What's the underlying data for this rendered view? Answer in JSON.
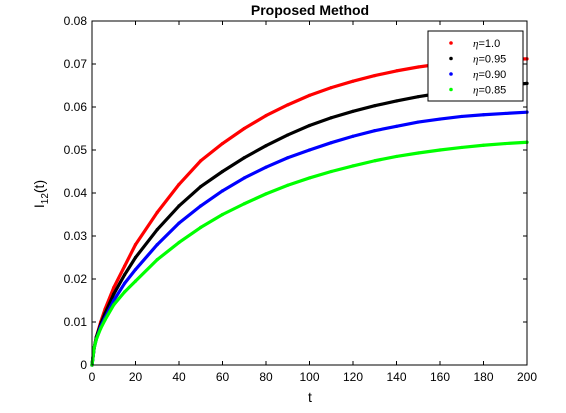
{
  "chart_data": {
    "type": "line",
    "title": "Proposed Method",
    "xlabel": "t",
    "ylabel": "I",
    "ylabel_subscript": "12",
    "ylabel_suffix": "(t)",
    "xlim": [
      0,
      200
    ],
    "ylim": [
      0,
      0.08
    ],
    "xticks": [
      0,
      20,
      40,
      60,
      80,
      100,
      120,
      140,
      160,
      180,
      200
    ],
    "yticks": [
      0,
      0.01,
      0.02,
      0.03,
      0.04,
      0.05,
      0.06,
      0.07,
      0.08
    ],
    "xtick_labels": [
      "0",
      "20",
      "40",
      "60",
      "80",
      "100",
      "120",
      "140",
      "160",
      "180",
      "200"
    ],
    "ytick_labels": [
      "0",
      "0.01",
      "0.02",
      "0.03",
      "0.04",
      "0.05",
      "0.06",
      "0.07",
      "0.08"
    ],
    "grid": false,
    "legend_position": "top-right",
    "x": [
      0,
      1,
      2,
      4,
      6,
      10,
      15,
      20,
      30,
      40,
      50,
      60,
      70,
      80,
      90,
      100,
      110,
      120,
      130,
      140,
      150,
      160,
      170,
      180,
      190,
      200
    ],
    "series": [
      {
        "name": "η=1.0",
        "legend_symbol": "η",
        "legend_value": "=1.0",
        "color": "#ff0000",
        "values": [
          0,
          0.004,
          0.0065,
          0.01,
          0.013,
          0.018,
          0.023,
          0.028,
          0.0355,
          0.042,
          0.0475,
          0.0515,
          0.055,
          0.058,
          0.0605,
          0.0627,
          0.0645,
          0.066,
          0.0673,
          0.0684,
          0.0693,
          0.07,
          0.0705,
          0.0709,
          0.0711,
          0.0712
        ]
      },
      {
        "name": "η=0.95",
        "legend_symbol": "η",
        "legend_value": "=0.95",
        "color": "#000000",
        "values": [
          0,
          0.004,
          0.0065,
          0.0095,
          0.012,
          0.0165,
          0.021,
          0.025,
          0.0315,
          0.037,
          0.0415,
          0.045,
          0.0482,
          0.051,
          0.0535,
          0.0557,
          0.0575,
          0.059,
          0.0603,
          0.0614,
          0.0624,
          0.0632,
          0.0639,
          0.0645,
          0.065,
          0.0655
        ]
      },
      {
        "name": "η=0.90",
        "legend_symbol": "η",
        "legend_value": "=0.90",
        "color": "#0000ff",
        "values": [
          0,
          0.004,
          0.006,
          0.009,
          0.011,
          0.015,
          0.019,
          0.0222,
          0.028,
          0.033,
          0.037,
          0.0405,
          0.0435,
          0.046,
          0.0482,
          0.05,
          0.0517,
          0.0532,
          0.0545,
          0.0555,
          0.0565,
          0.0572,
          0.0578,
          0.0582,
          0.0585,
          0.0588
        ]
      },
      {
        "name": "η=0.85",
        "legend_symbol": "η",
        "legend_value": "=0.85",
        "color": "#00ff00",
        "values": [
          0,
          0.004,
          0.006,
          0.0085,
          0.0105,
          0.014,
          0.017,
          0.0195,
          0.0245,
          0.0285,
          0.032,
          0.035,
          0.0375,
          0.0398,
          0.0418,
          0.0435,
          0.045,
          0.0463,
          0.0475,
          0.0485,
          0.0493,
          0.05,
          0.0506,
          0.0511,
          0.0515,
          0.0518
        ]
      }
    ]
  }
}
